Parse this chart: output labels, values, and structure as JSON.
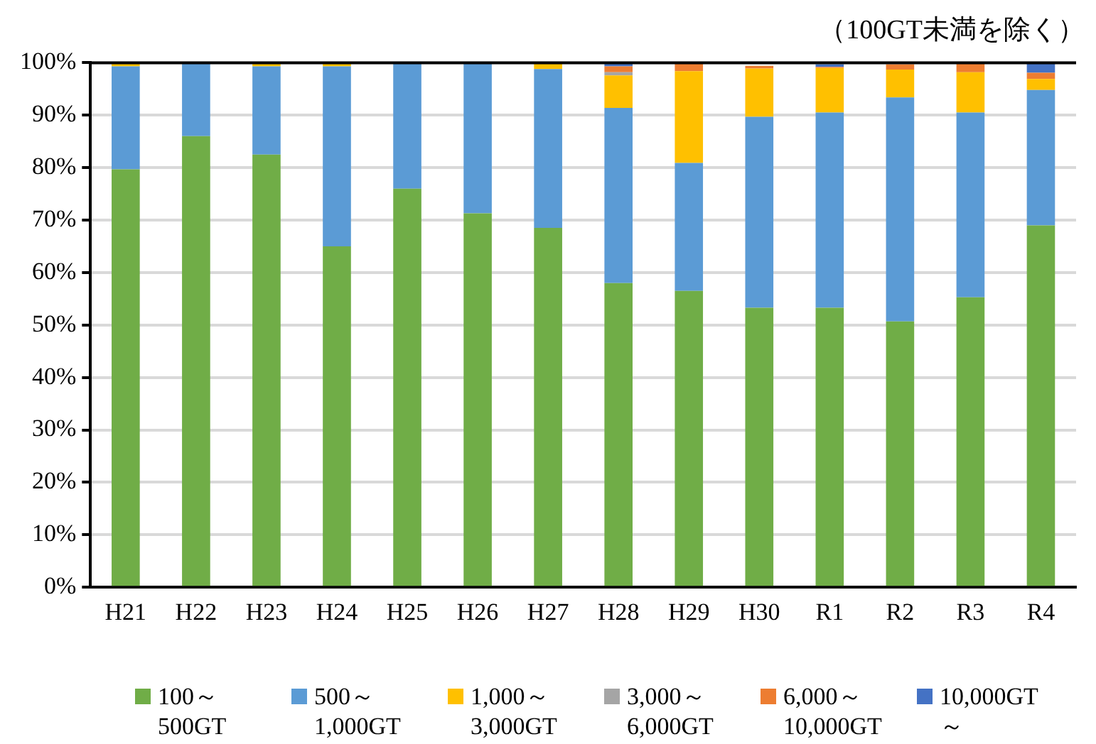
{
  "chart_data": {
    "type": "bar",
    "subtitle": "（100GT未満を除く）",
    "stacked": true,
    "grid": "y",
    "legend": "bottom",
    "categories": [
      "H21",
      "H22",
      "H23",
      "H24",
      "H25",
      "H26",
      "H27",
      "H28",
      "H29",
      "H30",
      "R1",
      "R2",
      "R3",
      "R4"
    ],
    "ylim": [
      0,
      100
    ],
    "yticks": [
      {
        "value": 0,
        "label": "0%"
      },
      {
        "value": 10,
        "label": "10%"
      },
      {
        "value": 20,
        "label": "20%"
      },
      {
        "value": 30,
        "label": "30%"
      },
      {
        "value": 40,
        "label": "40%"
      },
      {
        "value": 50,
        "label": "50%"
      },
      {
        "value": 60,
        "label": "60%"
      },
      {
        "value": 70,
        "label": "70%"
      },
      {
        "value": 80,
        "label": "80%"
      },
      {
        "value": 90,
        "label": "90%"
      },
      {
        "value": 100,
        "label": "100%"
      }
    ],
    "series": [
      {
        "name": "100～500GT",
        "color": "#70ad47",
        "values": [
          79.7,
          86,
          82.5,
          65,
          76,
          71.3,
          68.5,
          58,
          56.5,
          53.3,
          53.3,
          50.7,
          55.3,
          69
        ]
      },
      {
        "name": "500～1,000GT",
        "color": "#5b9bd5",
        "values": [
          19.6,
          14,
          16.8,
          34.3,
          24,
          28.7,
          30.3,
          33.4,
          24.4,
          36.4,
          37.2,
          42.7,
          35.2,
          25.8
        ]
      },
      {
        "name": "1,000～3,000GT",
        "color": "#ffc000",
        "values": [
          0.7,
          0,
          0.7,
          0.7,
          0,
          0,
          1.2,
          6.2,
          17.5,
          9.2,
          8.5,
          5.3,
          7.7,
          2.1
        ]
      },
      {
        "name": "3,000～6,000GT",
        "color": "#a5a5a5",
        "values": [
          0,
          0,
          0,
          0,
          0,
          0,
          0,
          0.6,
          0,
          null,
          null,
          0,
          0,
          0
        ]
      },
      {
        "name": "6,000～10,000GT",
        "color": "#ed7d31",
        "values": [
          0,
          0,
          0,
          0,
          0,
          0,
          0,
          1.1,
          1.6,
          0.5,
          0.2,
          1,
          1.8,
          1.2
        ]
      },
      {
        "name": "10,000GT～",
        "color": "#4472c4",
        "values": [
          0,
          0,
          0,
          0,
          0,
          0,
          0,
          0.7,
          0,
          null,
          0.5,
          null,
          0,
          1.9
        ]
      }
    ]
  }
}
